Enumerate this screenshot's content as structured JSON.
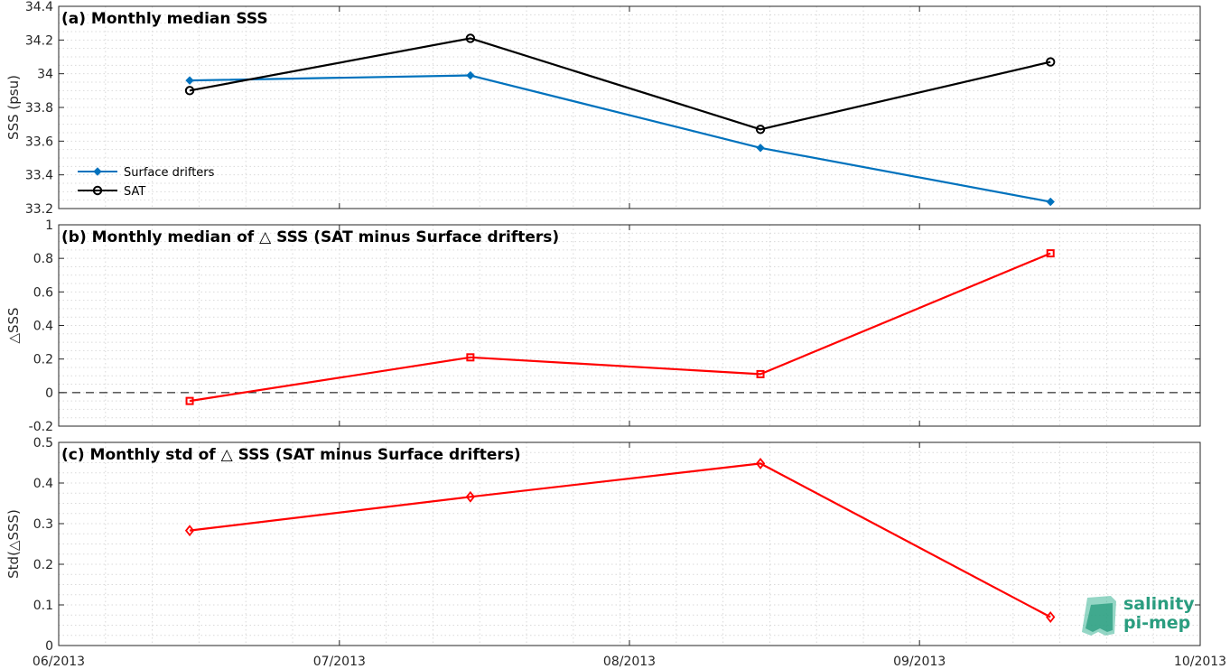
{
  "x_ticks": [
    "06/2013",
    "07/2013",
    "08/2013",
    "09/2013",
    "10/2013"
  ],
  "logo": {
    "line1": "salinity",
    "line2": "pi-mep"
  },
  "colors": {
    "drifters": "#0072BD",
    "sat": "#000000",
    "delta": "#FF0000",
    "logo": "#2a9d7f"
  },
  "chart_data": [
    {
      "type": "line",
      "title": "(a) Monthly median SSS",
      "ylabel": "SSS (psu)",
      "xlabel": "",
      "xlim": [
        "2013-06-01",
        "2013-10-01"
      ],
      "ylim": [
        33.2,
        34.4
      ],
      "yticks": [
        33.2,
        33.4,
        33.6,
        33.8,
        34,
        34.2,
        34.4
      ],
      "ytick_labels": [
        "33.2",
        "33.4",
        "33.6",
        "33.8",
        "34",
        "34.2",
        "34.4"
      ],
      "grid": true,
      "legend_position": "bottom-left",
      "x": [
        "2013-06-15",
        "2013-07-15",
        "2013-08-15",
        "2013-09-15"
      ],
      "series": [
        {
          "name": "Surface drifters",
          "values": [
            33.96,
            33.99,
            33.56,
            33.24
          ],
          "color": "#0072BD",
          "marker": "diamond"
        },
        {
          "name": "SAT",
          "values": [
            33.9,
            34.21,
            33.67,
            34.07
          ],
          "color": "#000000",
          "marker": "circle"
        }
      ]
    },
    {
      "type": "line",
      "title": "(b) Monthly median of △ SSS (SAT minus Surface drifters)",
      "ylabel": "△SSS",
      "xlabel": "",
      "xlim": [
        "2013-06-01",
        "2013-10-01"
      ],
      "ylim": [
        -0.2,
        1
      ],
      "yticks": [
        -0.2,
        0,
        0.2,
        0.4,
        0.6,
        0.8,
        1
      ],
      "ytick_labels": [
        "-0.2",
        "0",
        "0.2",
        "0.4",
        "0.6",
        "0.8",
        "1"
      ],
      "grid": true,
      "reference_line": 0,
      "x": [
        "2013-06-15",
        "2013-07-15",
        "2013-08-15",
        "2013-09-15"
      ],
      "series": [
        {
          "values": [
            -0.05,
            0.21,
            0.11,
            0.83
          ],
          "color": "#FF0000",
          "marker": "square"
        }
      ]
    },
    {
      "type": "line",
      "title": "(c) Monthly std of △ SSS (SAT minus Surface drifters)",
      "ylabel": "Std(△SSS)",
      "xlabel": "",
      "xlim": [
        "2013-06-01",
        "2013-10-01"
      ],
      "ylim": [
        0,
        0.5
      ],
      "yticks": [
        0,
        0.1,
        0.2,
        0.3,
        0.4,
        0.5
      ],
      "ytick_labels": [
        "0",
        "0.1",
        "0.2",
        "0.3",
        "0.4",
        "0.5"
      ],
      "grid": true,
      "x": [
        "2013-06-15",
        "2013-07-15",
        "2013-08-15",
        "2013-09-15"
      ],
      "series": [
        {
          "values": [
            0.283,
            0.366,
            0.448,
            0.07
          ],
          "color": "#FF0000",
          "marker": "diamond"
        }
      ]
    }
  ]
}
